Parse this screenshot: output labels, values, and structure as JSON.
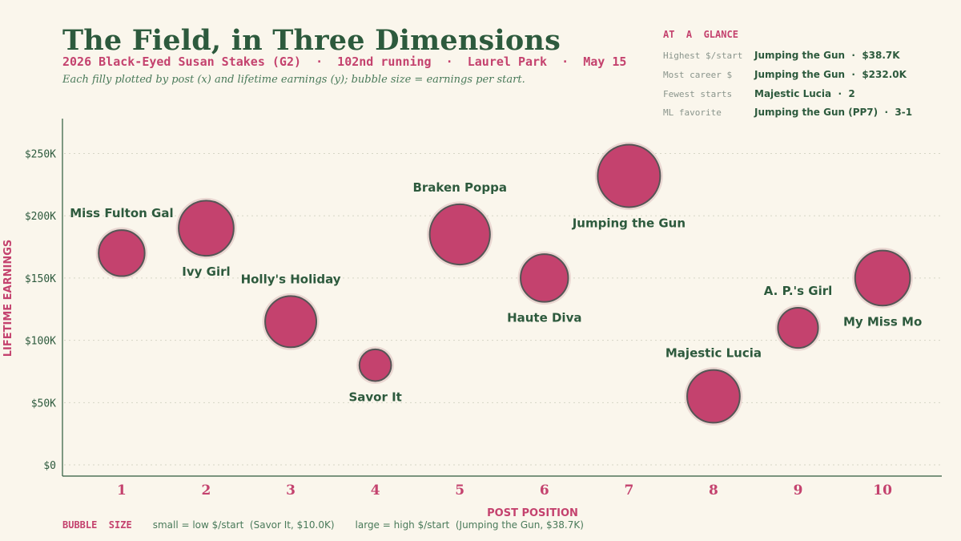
{
  "header": {
    "title": "The Field, in Three Dimensions",
    "subtitle": "2026 Black-Eyed Susan Stakes (G2)  ·  102nd running  ·  Laurel Park  ·  May 15",
    "tagline": "Each filly plotted by post (x) and lifetime earnings (y);  bubble size = earnings per start."
  },
  "glance": {
    "title": "AT  A  GLANCE",
    "rows": [
      {
        "label": "Highest $/start",
        "value": "Jumping the Gun  ·  $38.7K"
      },
      {
        "label": "Most career $",
        "value": "Jumping the Gun  ·  $232.0K"
      },
      {
        "label": "Fewest starts",
        "value": "Majestic Lucia  ·  2"
      },
      {
        "label": "ML favorite",
        "value": "Jumping the Gun (PP7)  ·  3-1"
      }
    ]
  },
  "footer": {
    "title": "BUBBLE  SIZE",
    "small": "small = low $/start  (Savor It, $10.0K)",
    "large": "large = high $/start  (Jumping the Gun, $38.7K)"
  },
  "colors": {
    "bubble": "#c4426e",
    "bubble_edge": "#555555",
    "halo": "#ead7d2",
    "label": "#2d5a3d",
    "accent": "#c4426e",
    "axis": "#2d5a3d",
    "grid": "#d6d6c6"
  },
  "chart_data": {
    "type": "scatter",
    "xlabel": "POST  POSITION",
    "ylabel": "LIFETIME  EARNINGS",
    "xlim": [
      0.3,
      10.7
    ],
    "ylim": [
      -9000,
      278000
    ],
    "x_ticks": [
      1,
      2,
      3,
      4,
      5,
      6,
      7,
      8,
      9,
      10
    ],
    "x_tick_labels": [
      "1",
      "2",
      "3",
      "4",
      "5",
      "6",
      "7",
      "8",
      "9",
      "10"
    ],
    "y_ticks": [
      0,
      50000,
      100000,
      150000,
      200000,
      250000
    ],
    "y_tick_labels": [
      "$0",
      "$50K",
      "$100K",
      "$150K",
      "$200K",
      "$250K"
    ],
    "grid": true,
    "size_encoding": "earnings per start",
    "points": [
      {
        "name": "Miss Fulton Gal",
        "x": 1,
        "y": 170000,
        "per_start": 21000,
        "label_pos": "above"
      },
      {
        "name": "Ivy Girl",
        "x": 2,
        "y": 190000,
        "per_start": 30000,
        "label_pos": "below"
      },
      {
        "name": "Holly's Holiday",
        "x": 3,
        "y": 115000,
        "per_start": 26000,
        "label_pos": "above"
      },
      {
        "name": "Savor It",
        "x": 4,
        "y": 80000,
        "per_start": 10000,
        "label_pos": "below"
      },
      {
        "name": "Braken Poppa",
        "x": 5,
        "y": 185000,
        "per_start": 36000,
        "label_pos": "above"
      },
      {
        "name": "Haute Diva",
        "x": 6,
        "y": 150000,
        "per_start": 22500,
        "label_pos": "below"
      },
      {
        "name": "Jumping the Gun",
        "x": 7,
        "y": 232000,
        "per_start": 38700,
        "label_pos": "below"
      },
      {
        "name": "Majestic Lucia",
        "x": 8,
        "y": 55000,
        "per_start": 27500,
        "label_pos": "above"
      },
      {
        "name": "A. P.'s Girl",
        "x": 9,
        "y": 110000,
        "per_start": 16000,
        "label_pos": "above"
      },
      {
        "name": "My Miss Mo",
        "x": 10,
        "y": 150000,
        "per_start": 30000,
        "label_pos": "below"
      }
    ]
  }
}
